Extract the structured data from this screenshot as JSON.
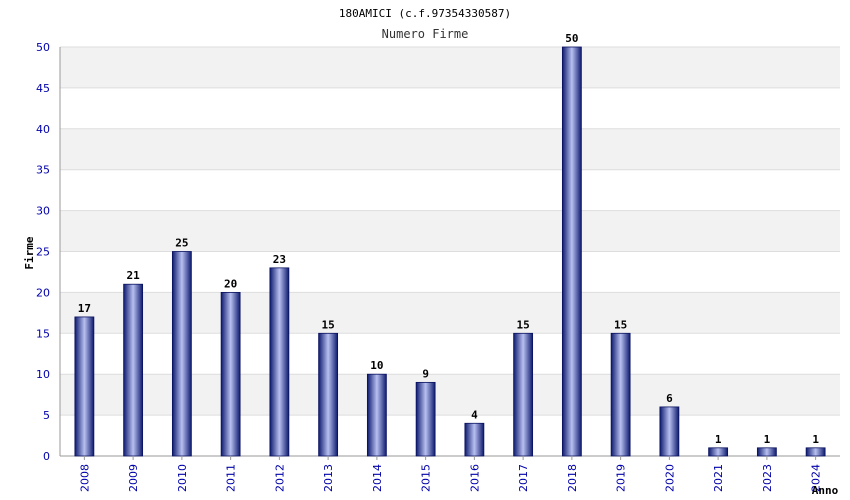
{
  "chart_data": {
    "type": "bar",
    "title": "180AMICI (c.f.97354330587)",
    "subtitle": "Numero Firme",
    "xlabel": "Anno",
    "ylabel": "Firme",
    "ylim": [
      0,
      50
    ],
    "yticks": [
      0,
      5,
      10,
      15,
      20,
      25,
      30,
      35,
      40,
      45,
      50
    ],
    "grid": true,
    "categories": [
      "2008",
      "2009",
      "2010",
      "2011",
      "2012",
      "2013",
      "2014",
      "2015",
      "2016",
      "2017",
      "2018",
      "2019",
      "2020",
      "2021",
      "2023",
      "2024"
    ],
    "values": [
      17,
      21,
      25,
      20,
      23,
      15,
      10,
      9,
      4,
      15,
      50,
      15,
      6,
      1,
      1,
      1
    ],
    "colors": {
      "bar": "#1a237e",
      "bar_highlight": "#c5cae9",
      "band": "#f2f2f2",
      "tick": "#0000aa"
    }
  }
}
